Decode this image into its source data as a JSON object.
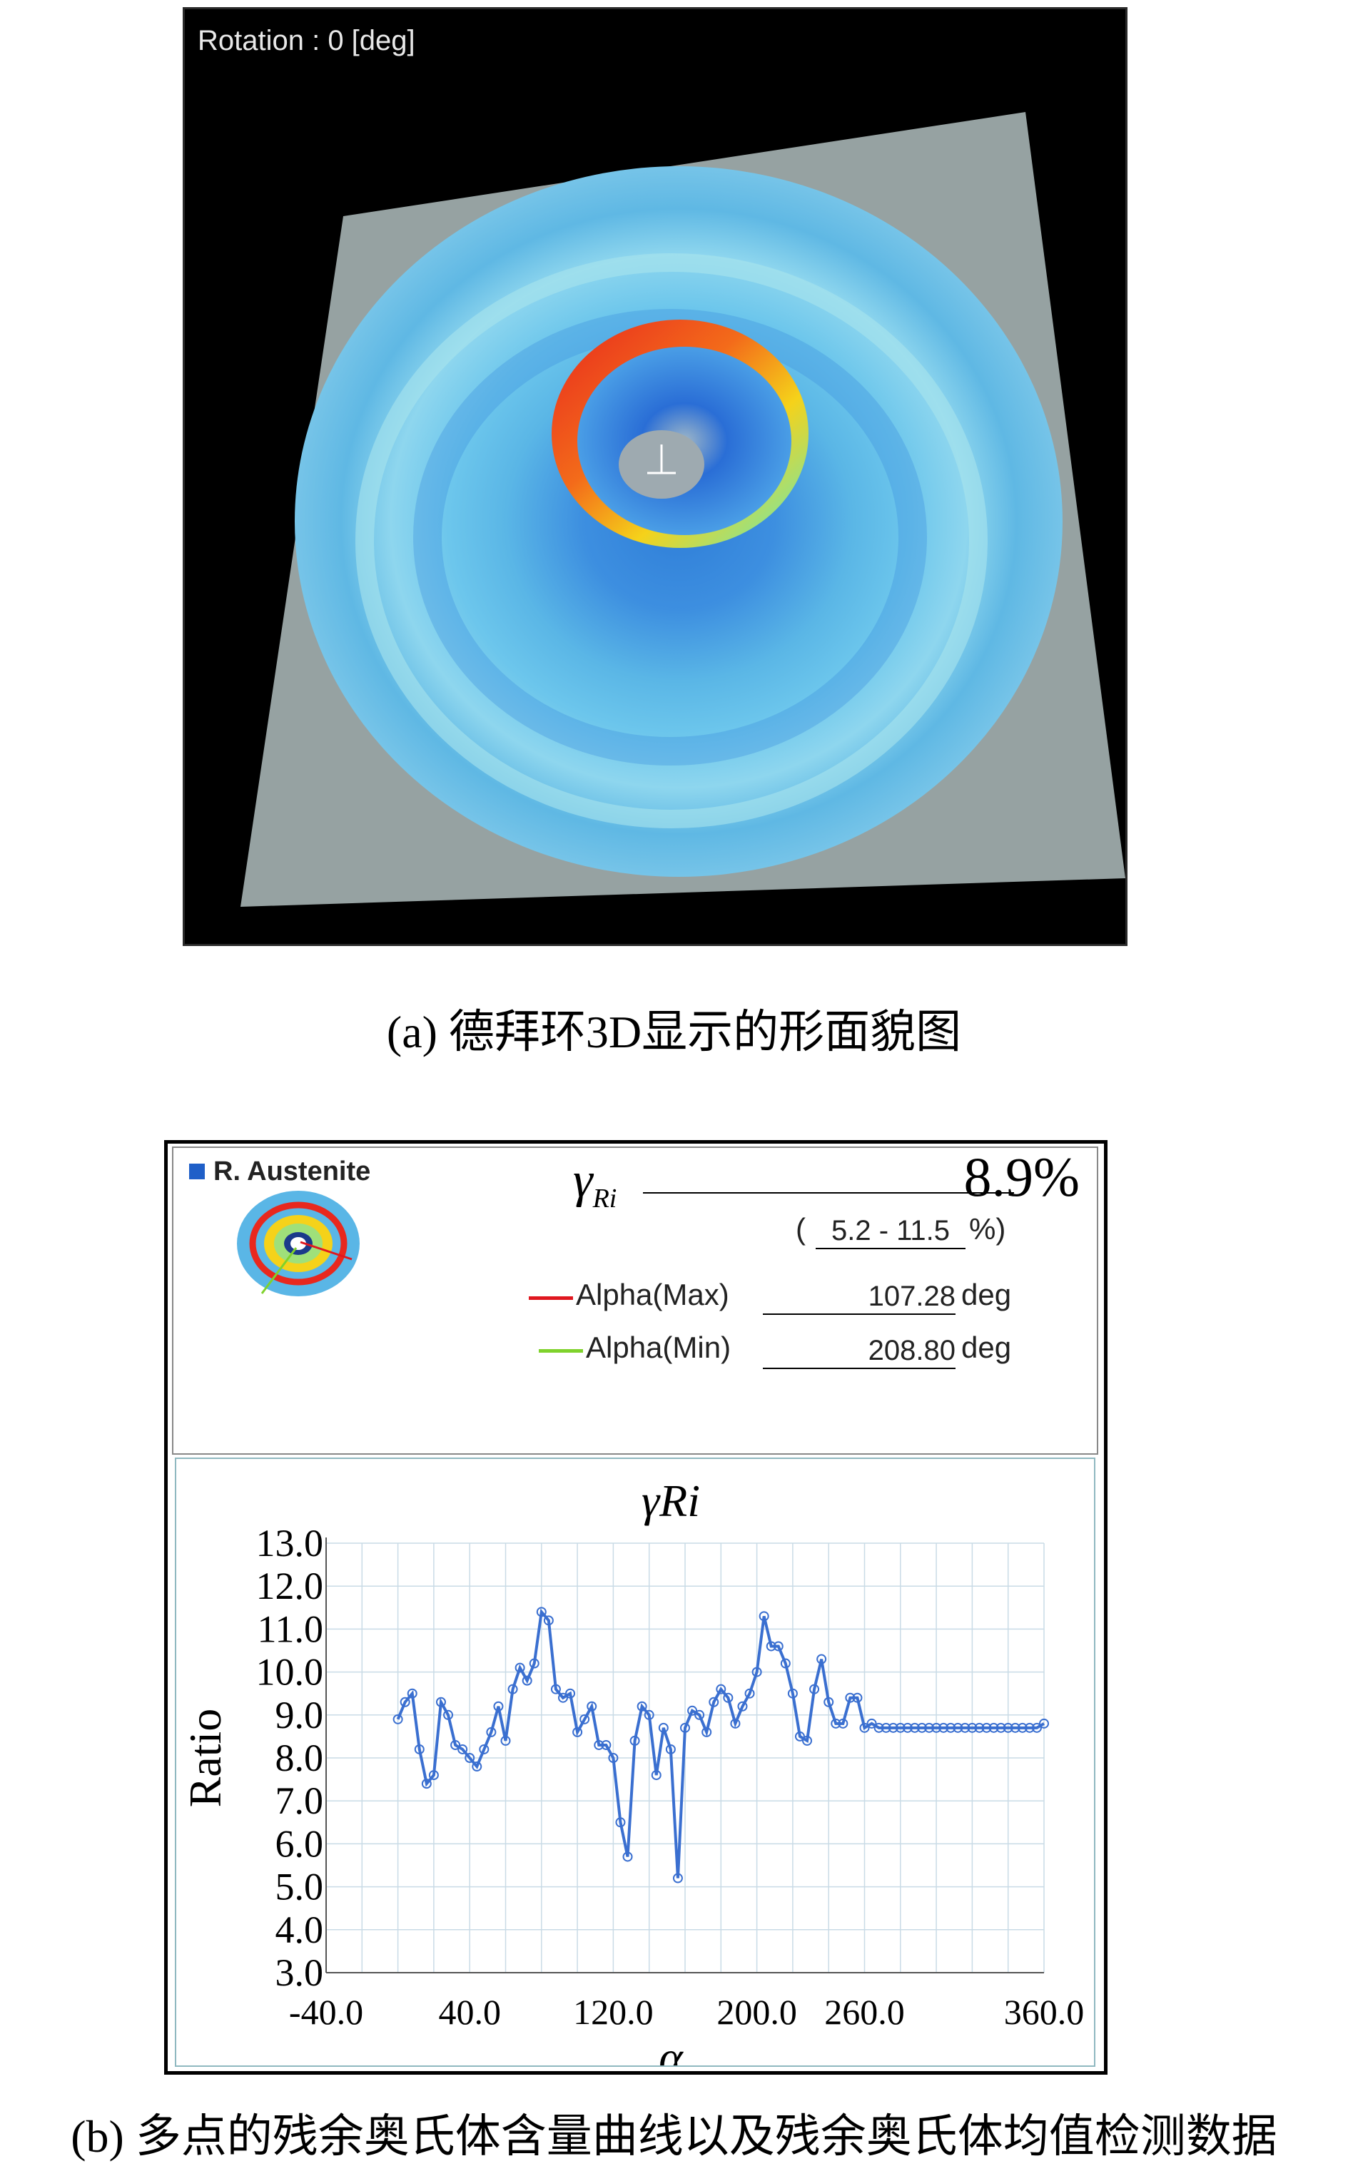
{
  "panel_a": {
    "rotation_label": "Rotation : 0 [deg]",
    "caption": "(a) 德拜环3D显示的形面貌图",
    "colors": {
      "background": "#000000",
      "plane": "#96a2a2",
      "ring": "#5ab6e6",
      "peak": "#e8281e"
    }
  },
  "panel_b": {
    "legend_label": "R. Austenite",
    "gamma_symbol": "γ",
    "gamma_subscript": "Ri",
    "gamma_value": "8.9%",
    "range_open": "(",
    "range_value": "5.2 - 11.5",
    "range_close": "%)",
    "alpha_max_label": "Alpha(Max)",
    "alpha_max_value": "107.28",
    "alpha_max_unit": "deg",
    "alpha_min_label": "Alpha(Min)",
    "alpha_min_value": "208.80",
    "alpha_min_unit": "deg",
    "caption": "(b) 多点的残余奥氏体含量曲线以及残余奥氏体均值检测数据",
    "colors": {
      "max_line": "#e0171f",
      "min_line": "#7fd22c",
      "series": "#3a6fd0"
    }
  },
  "chart_data": {
    "type": "line",
    "title": "γRi",
    "xlabel": "α",
    "ylabel": "Ratio",
    "xlim": [
      -40,
      360
    ],
    "ylim": [
      3.0,
      13.0
    ],
    "x_ticks": [
      "-40.0",
      "40.0",
      "120.0",
      "200.0",
      "260.0",
      "360.0"
    ],
    "y_ticks": [
      "3.0",
      "4.0",
      "5.0",
      "6.0",
      "7.0",
      "8.0",
      "9.0",
      "10.0",
      "11.0",
      "12.0",
      "13.0"
    ],
    "grid": true,
    "series": [
      {
        "color": "#3a6fd0",
        "x": [
          0,
          4,
          8,
          12,
          16,
          20,
          24,
          28,
          32,
          36,
          40,
          44,
          48,
          52,
          56,
          60,
          64,
          68,
          72,
          76,
          80,
          84,
          88,
          92,
          96,
          100,
          104,
          108,
          112,
          116,
          120,
          124,
          128,
          132,
          136,
          140,
          144,
          148,
          152,
          156,
          160,
          164,
          168,
          172,
          176,
          180,
          184,
          188,
          192,
          196,
          200,
          204,
          208,
          212,
          216,
          220,
          224,
          228,
          232,
          236,
          240,
          244,
          248,
          252,
          256,
          260,
          264,
          268,
          272,
          276,
          280,
          284,
          288,
          292,
          296,
          300,
          304,
          308,
          312,
          316,
          320,
          324,
          328,
          332,
          336,
          340,
          344,
          348,
          352,
          356,
          360
        ],
        "y": [
          8.9,
          9.3,
          9.5,
          8.2,
          7.4,
          7.6,
          9.3,
          9.0,
          8.3,
          8.2,
          8.0,
          7.8,
          8.2,
          8.6,
          9.2,
          8.4,
          9.6,
          10.1,
          9.8,
          10.2,
          11.4,
          11.2,
          9.6,
          9.4,
          9.5,
          8.6,
          8.9,
          9.2,
          8.3,
          8.3,
          8.0,
          6.5,
          5.7,
          8.4,
          9.2,
          9.0,
          7.6,
          8.7,
          8.2,
          5.2,
          8.7,
          9.1,
          9.0,
          8.6,
          9.3,
          9.6,
          9.4,
          8.8,
          9.2,
          9.5,
          10.0,
          11.3,
          10.6,
          10.6,
          10.2,
          9.5,
          8.5,
          8.4,
          9.6,
          10.3,
          9.3,
          8.8,
          8.8,
          9.4,
          9.4,
          8.7,
          8.8,
          8.7,
          8.7,
          8.7,
          8.7,
          8.7,
          8.7,
          8.7,
          8.7,
          8.7,
          8.7,
          8.7,
          8.7,
          8.7,
          8.7,
          8.7,
          8.7,
          8.7,
          8.7,
          8.7,
          8.7,
          8.7,
          8.7,
          8.7,
          8.8
        ]
      }
    ]
  }
}
